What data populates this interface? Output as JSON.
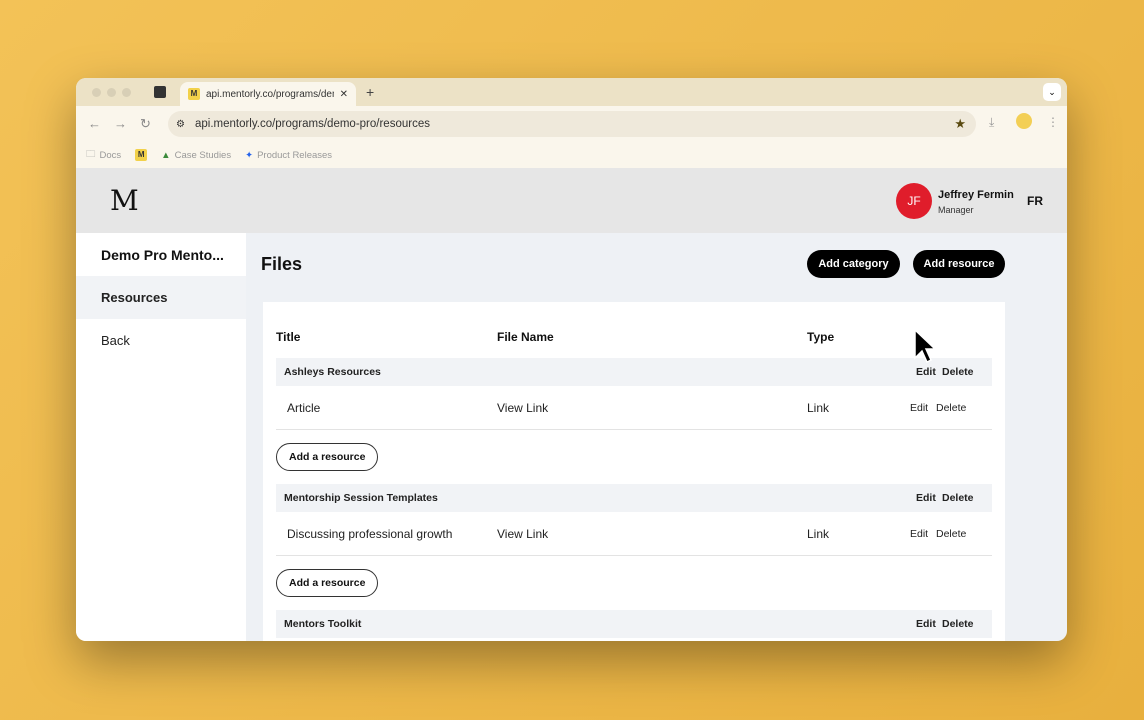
{
  "browser": {
    "tab_title": "api.mentorly.co/programs/demo-pro/resources",
    "url": "api.mentorly.co/programs/demo-pro/resources",
    "bookmarks": [
      {
        "label": "Docs",
        "icon": "folder-icon"
      },
      {
        "label": "",
        "icon": "mentorly-icon"
      },
      {
        "label": "Case Studies",
        "icon": "drive-icon"
      },
      {
        "label": "Product Releases",
        "icon": "jira-icon"
      }
    ]
  },
  "header": {
    "logo": "M",
    "user": {
      "initials": "JF",
      "name": "Jeffrey Fermin",
      "role": "Manager",
      "avatar_color": "#e01d2b"
    },
    "language": "FR"
  },
  "sidebar": {
    "program": "Demo Pro Mento...",
    "items": [
      {
        "label": "Resources",
        "active": true
      },
      {
        "label": "Back",
        "active": false
      }
    ]
  },
  "main": {
    "title": "Files",
    "add_category": "Add category",
    "add_resource": "Add resource",
    "columns": [
      "Title",
      "File Name",
      "Type"
    ],
    "edit": "Edit",
    "delete": "Delete",
    "add_a_resource": "Add a resource",
    "categories": [
      {
        "name": "Ashleys Resources",
        "items": [
          {
            "title": "Article",
            "file": "View Link",
            "type": "Link"
          }
        ]
      },
      {
        "name": "Mentorship Session Templates",
        "items": [
          {
            "title": "Discussing professional growth",
            "file": "View Link",
            "type": "Link"
          }
        ]
      },
      {
        "name": "Mentors Toolkit",
        "items": []
      }
    ]
  }
}
